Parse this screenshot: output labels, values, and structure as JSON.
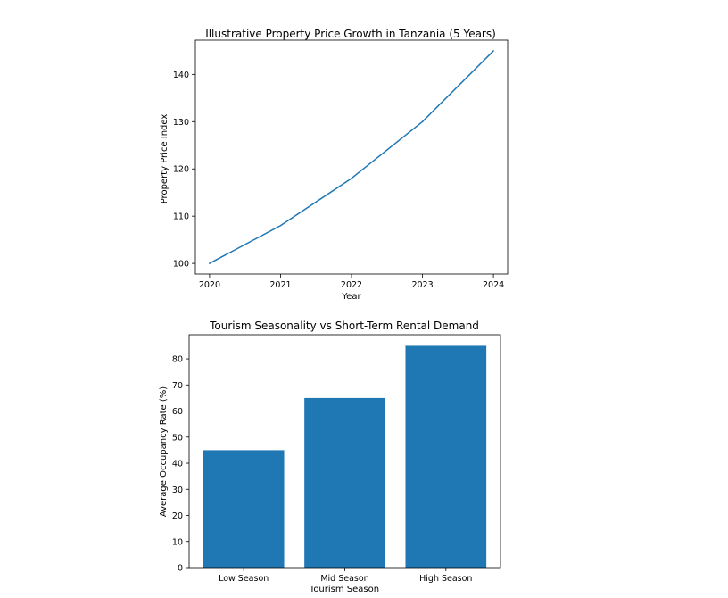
{
  "colors": {
    "series": "#1f77b4",
    "axes": "#000000",
    "background": "#ffffff"
  },
  "chart_data": [
    {
      "type": "line",
      "title": "Illustrative Property Price Growth in Tanzania (5 Years)",
      "xlabel": "Year",
      "ylabel": "Property Price Index",
      "x": [
        2020,
        2021,
        2022,
        2023,
        2024
      ],
      "x_tick_labels": [
        "2020",
        "2021",
        "2022",
        "2023",
        "2024"
      ],
      "series": [
        {
          "values": [
            100,
            108,
            118,
            130,
            145
          ]
        }
      ],
      "xlim": [
        2019.8,
        2024.2
      ],
      "ylim": [
        97.75,
        147.25
      ],
      "y_ticks": [
        100,
        110,
        120,
        130,
        140
      ],
      "y_tick_labels": [
        "100",
        "110",
        "120",
        "130",
        "140"
      ],
      "grid": false,
      "legend": "none"
    },
    {
      "type": "bar",
      "title": "Tourism Seasonality vs Short-Term Rental Demand",
      "xlabel": "Tourism Season",
      "ylabel": "Average Occupancy Rate (%)",
      "categories": [
        "Low Season",
        "Mid Season",
        "High Season"
      ],
      "values": [
        45,
        65,
        85
      ],
      "ylim": [
        0,
        89.25
      ],
      "y_ticks": [
        0,
        10,
        20,
        30,
        40,
        50,
        60,
        70,
        80
      ],
      "y_tick_labels": [
        "0",
        "10",
        "20",
        "30",
        "40",
        "50",
        "60",
        "70",
        "80"
      ],
      "grid": false,
      "legend": "none"
    }
  ]
}
